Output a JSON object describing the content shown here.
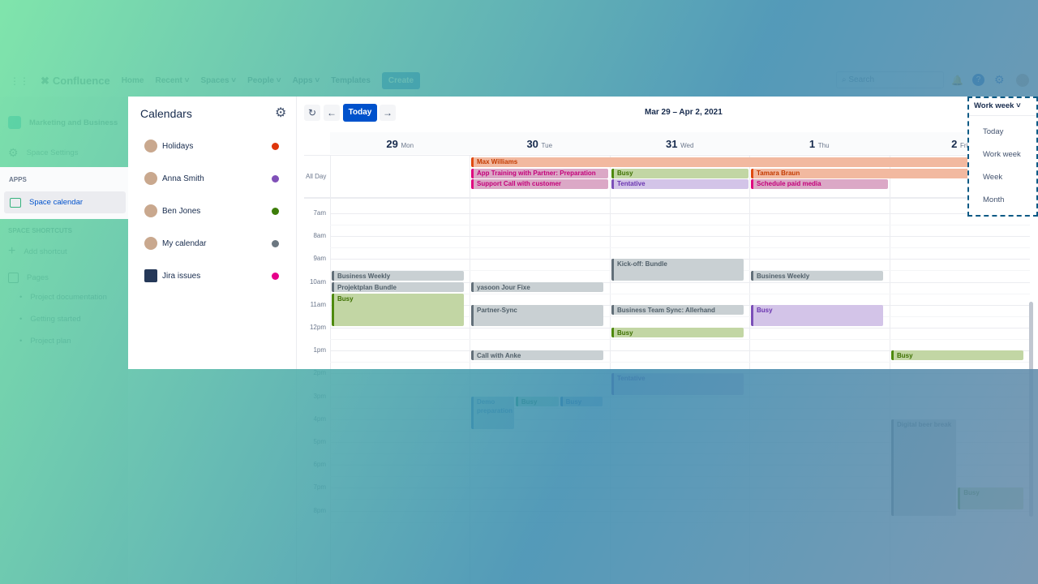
{
  "nav": {
    "brand": "Confluence",
    "items": [
      "Home",
      "Recent",
      "Spaces",
      "People",
      "Apps",
      "Templates"
    ],
    "create": "Create",
    "search_placeholder": "Search"
  },
  "sidebar": {
    "space": "Marketing and Business",
    "settings": "Space Settings",
    "apps_heading": "APPS",
    "space_calendar": "Space calendar",
    "shortcuts_heading": "SPACE SHORTCUTS",
    "add_shortcut": "Add shortcut",
    "pages": "Pages",
    "page_items": [
      "Project documentation",
      "Getting started",
      "Project plan"
    ]
  },
  "calendars": {
    "title": "Calendars",
    "items": [
      {
        "name": "Holidays",
        "color": "#de350b"
      },
      {
        "name": "Anna Smith",
        "color": "#8050b8"
      },
      {
        "name": "Ben Jones",
        "color": "#3d7d0a"
      },
      {
        "name": "My calendar",
        "color": "#6b7780"
      },
      {
        "name": "Jira issues",
        "color": "#e6008a"
      }
    ]
  },
  "toolbar": {
    "today": "Today",
    "range": "Mar 29 – Apr 2, 2021",
    "view": "Work week"
  },
  "view_options": [
    "Today",
    "Work week",
    "Week",
    "Month"
  ],
  "days": [
    {
      "num": "29",
      "name": "Mon"
    },
    {
      "num": "30",
      "name": "Tue"
    },
    {
      "num": "31",
      "name": "Wed"
    },
    {
      "num": "1",
      "name": "Thu"
    },
    {
      "num": "2",
      "name": "Fri"
    }
  ],
  "all_day_label": "All Day",
  "hours": [
    "7am",
    "8am",
    "9am",
    "10am",
    "11am",
    "12pm",
    "1pm",
    "2pm",
    "3pm",
    "4pm",
    "5pm",
    "6pm",
    "7pm",
    "8pm"
  ],
  "all_day_events": [
    {
      "title": "Max Williams",
      "day": 1,
      "span": 4,
      "row": 0,
      "kind": "orange"
    },
    {
      "title": "App Training with Partner: Preparation",
      "day": 1,
      "span": 1,
      "row": 1,
      "kind": "pink"
    },
    {
      "title": "Busy",
      "day": 2,
      "span": 1,
      "row": 1,
      "kind": "green"
    },
    {
      "title": "Tamara Braun",
      "day": 3,
      "span": 2,
      "row": 1,
      "kind": "orange"
    },
    {
      "title": "Support Call with customer",
      "day": 1,
      "span": 1,
      "row": 2,
      "kind": "pink"
    },
    {
      "title": "Tentative",
      "day": 2,
      "span": 1,
      "row": 2,
      "kind": "purple"
    },
    {
      "title": "Schedule paid media",
      "day": 3,
      "span": 1,
      "row": 2,
      "kind": "pink"
    }
  ],
  "events": [
    {
      "title": "Business Weekly",
      "day": 0,
      "start": 9.5,
      "end": 10,
      "kind": "gray"
    },
    {
      "title": "Projektplan Bundle",
      "day": 0,
      "start": 10,
      "end": 10.5,
      "kind": "gray"
    },
    {
      "title": "Busy",
      "day": 0,
      "start": 10.5,
      "end": 12,
      "kind": "green"
    },
    {
      "title": "yasoon Jour Fixe",
      "day": 1,
      "start": 10,
      "end": 10.5,
      "kind": "gray"
    },
    {
      "title": "Partner-Sync",
      "day": 1,
      "start": 11,
      "end": 12,
      "kind": "gray"
    },
    {
      "title": "Call with Anke",
      "day": 1,
      "start": 13,
      "end": 13.5,
      "kind": "gray"
    },
    {
      "title": "Demo preparation",
      "day": 1,
      "start": 15,
      "end": 16.5,
      "kind": "blue",
      "col": 0,
      "cols": 3
    },
    {
      "title": "Busy",
      "day": 1,
      "start": 15,
      "end": 15.5,
      "kind": "teal",
      "col": 1,
      "cols": 3
    },
    {
      "title": "Busy",
      "day": 1,
      "start": 15,
      "end": 15.5,
      "kind": "blue",
      "col": 2,
      "cols": 3
    },
    {
      "title": "Kick-off: Bundle",
      "day": 2,
      "start": 9,
      "end": 10,
      "kind": "gray"
    },
    {
      "title": "Business Team Sync: Allerhand",
      "day": 2,
      "start": 11,
      "end": 11.5,
      "kind": "gray"
    },
    {
      "title": "Busy",
      "day": 2,
      "start": 12,
      "end": 12.5,
      "kind": "green"
    },
    {
      "title": "Tentative",
      "day": 2,
      "start": 14,
      "end": 15,
      "kind": "purple"
    },
    {
      "title": "Business Weekly",
      "day": 3,
      "start": 9.5,
      "end": 10,
      "kind": "gray"
    },
    {
      "title": "Busy",
      "day": 3,
      "start": 11,
      "end": 12,
      "kind": "purple"
    },
    {
      "title": "Busy",
      "day": 4,
      "start": 13,
      "end": 13.5,
      "kind": "green"
    },
    {
      "title": "Digital beer break",
      "day": 4,
      "start": 16,
      "end": 20.3,
      "kind": "gray",
      "col": 0,
      "cols": 2
    },
    {
      "title": "Busy",
      "day": 4,
      "start": 19,
      "end": 20,
      "kind": "green",
      "col": 1,
      "cols": 2
    }
  ],
  "colors": {
    "gray": [
      "#c9d0d3",
      "#626f79",
      "#505f69"
    ],
    "green": [
      "#c2d6a4",
      "#4e8a0e",
      "#3d7000"
    ],
    "purple": [
      "#d3c4e8",
      "#7b4fb8",
      "#6a35b0"
    ],
    "pink": [
      "#dba8c6",
      "#e0087e",
      "#c4007a"
    ],
    "orange": [
      "#f2b9a0",
      "#e04a10",
      "#c33a00"
    ],
    "blue": [
      "#a9c4e6",
      "#1f5fbf",
      "#1f5fbf"
    ],
    "teal": [
      "#a5d6c8",
      "#00875a",
      "#006644"
    ],
    "primary": "#0052cc"
  }
}
